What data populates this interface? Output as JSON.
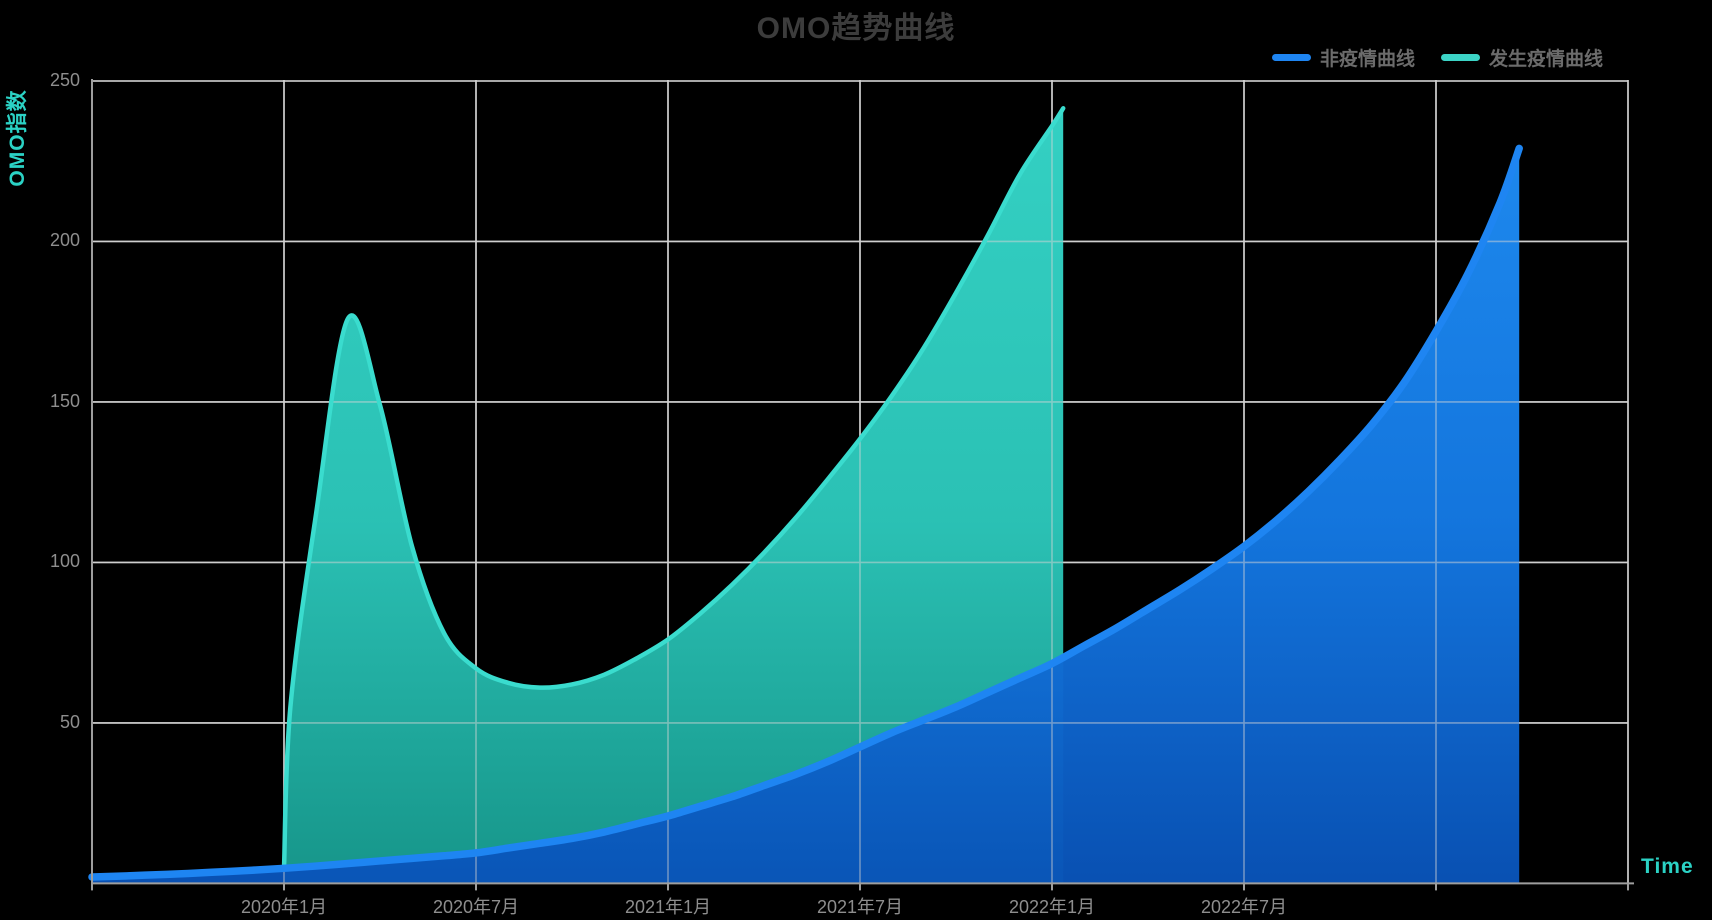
{
  "title": {
    "text": "OMO趋势曲线"
  },
  "legend": {
    "items": [
      {
        "label": "非疫情曲线",
        "color": "#1e85f2"
      },
      {
        "label": "发生疫情曲线",
        "color": "#3cd4c6"
      }
    ]
  },
  "axes": {
    "y": {
      "name": "OMO指数",
      "name_color": "#2bd2c5",
      "min": 0,
      "max": 250,
      "ticks": [
        50,
        100,
        150,
        200,
        250
      ]
    },
    "x": {
      "name": "Time",
      "name_color": "#2bd2c5",
      "tick_labels": [
        "2020年1月",
        "2020年7月",
        "2021年1月",
        "2021年7月",
        "2022年1月",
        "2022年7月"
      ],
      "range_start": "2019-07",
      "range_end": "2023-07",
      "gridline_interval_months": 6
    }
  },
  "chart_data": {
    "type": "area",
    "title": "OMO趋势曲线",
    "xlabel": "Time",
    "ylabel": "OMO指数",
    "ylim": [
      0,
      250
    ],
    "grid": true,
    "legend_position": "top-right",
    "background": "#000000",
    "t_unit": "months since 2019-07",
    "series": [
      {
        "name": "非疫情曲线",
        "line_color": "#1e85f2",
        "fill_top": "#2090f8",
        "fill_mid": "#1479e4",
        "fill_bottom": "#0953b8",
        "line_width": 7.5,
        "points": [
          [
            0,
            2
          ],
          [
            1,
            2.3
          ],
          [
            2,
            2.7
          ],
          [
            3,
            3.1
          ],
          [
            4,
            3.6
          ],
          [
            5,
            4.1
          ],
          [
            6,
            4.7
          ],
          [
            7,
            5.4
          ],
          [
            8,
            6.2
          ],
          [
            9,
            7
          ],
          [
            10,
            7.8
          ],
          [
            11,
            8.6
          ],
          [
            12,
            9.5
          ],
          [
            13,
            11
          ],
          [
            14,
            12.5
          ],
          [
            15,
            14
          ],
          [
            16,
            16
          ],
          [
            17,
            18.5
          ],
          [
            18,
            21
          ],
          [
            19,
            24
          ],
          [
            20,
            27
          ],
          [
            21,
            30.5
          ],
          [
            22,
            34
          ],
          [
            23,
            38
          ],
          [
            24,
            42.5
          ],
          [
            25,
            47
          ],
          [
            26,
            51
          ],
          [
            27,
            55
          ],
          [
            28,
            59.5
          ],
          [
            29,
            64
          ],
          [
            30,
            68.5
          ],
          [
            31,
            74
          ],
          [
            32,
            79.5
          ],
          [
            33,
            85.5
          ],
          [
            34,
            91.5
          ],
          [
            35,
            98
          ],
          [
            36,
            105
          ],
          [
            37,
            113
          ],
          [
            38,
            122
          ],
          [
            39,
            132
          ],
          [
            40,
            143
          ],
          [
            41,
            156
          ],
          [
            42,
            172
          ],
          [
            43,
            190
          ],
          [
            44,
            212
          ],
          [
            44.6,
            229
          ]
        ]
      },
      {
        "name": "发生疫情曲线",
        "line_color": "#3adcce",
        "fill_top": "#36d8ca",
        "fill_mid": "#2cc7ba",
        "fill_bottom": "#179a8e",
        "line_width": 4.5,
        "points": [
          [
            6,
            4.7
          ],
          [
            6.2,
            55
          ],
          [
            7,
            115
          ],
          [
            8,
            176
          ],
          [
            9,
            149
          ],
          [
            10,
            105
          ],
          [
            11,
            78
          ],
          [
            12,
            67
          ],
          [
            13,
            62.5
          ],
          [
            14,
            61
          ],
          [
            15,
            62
          ],
          [
            16,
            65
          ],
          [
            17,
            70
          ],
          [
            18,
            76
          ],
          [
            19,
            84
          ],
          [
            20,
            93
          ],
          [
            21,
            103
          ],
          [
            22,
            114
          ],
          [
            23,
            126
          ],
          [
            24,
            138.5
          ],
          [
            25,
            152
          ],
          [
            26,
            167
          ],
          [
            27,
            184
          ],
          [
            28,
            202
          ],
          [
            29,
            221
          ],
          [
            30,
            236
          ],
          [
            30.35,
            241.5
          ]
        ]
      }
    ]
  },
  "style": {
    "gridline_color": "#cfcfcf",
    "axis_color": "#9e9e9e",
    "tick_label_color": "#8e8e8e",
    "title_color": "#3c3c3c",
    "legend_label_color": "#6b6b6b"
  }
}
